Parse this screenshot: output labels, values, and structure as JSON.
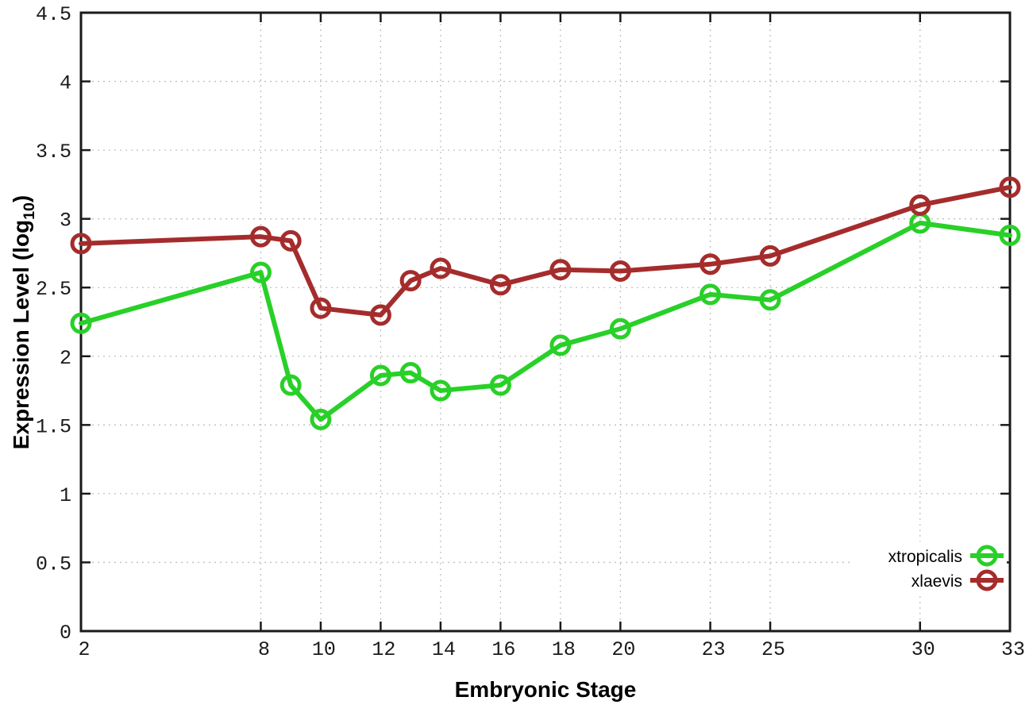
{
  "chart_data": {
    "type": "line",
    "title": "",
    "xlabel": "Embryonic Stage",
    "ylabel": {
      "prefix": "Expression Level (log",
      "sub": "10",
      "suffix": ")"
    },
    "xlim": [
      2,
      33
    ],
    "ylim": [
      0,
      4.5
    ],
    "x": [
      2,
      8,
      9,
      10,
      12,
      13,
      14,
      16,
      18,
      20,
      23,
      25,
      30,
      33
    ],
    "xticks": [
      2,
      8,
      10,
      12,
      14,
      16,
      18,
      20,
      23,
      25,
      30,
      33
    ],
    "yticks": [
      0,
      0.5,
      1,
      1.5,
      2,
      2.5,
      3,
      3.5,
      4,
      4.5
    ],
    "grid": true,
    "series": [
      {
        "name": "xtropicalis",
        "color": "#28d028",
        "marker": "open-circle",
        "values": [
          2.24,
          2.61,
          1.79,
          1.54,
          1.86,
          1.88,
          1.75,
          1.79,
          2.08,
          2.2,
          2.45,
          2.41,
          2.97,
          2.88
        ]
      },
      {
        "name": "xlaevis",
        "color": "#a52c2c",
        "marker": "open-circle",
        "values": [
          2.82,
          2.87,
          2.84,
          2.35,
          2.3,
          2.55,
          2.64,
          2.52,
          2.63,
          2.62,
          2.67,
          2.73,
          3.1,
          3.23
        ]
      }
    ],
    "legend": {
      "position": "bottom-right",
      "entries": [
        "xtropicalis",
        "xlaevis"
      ]
    },
    "style": {
      "border_color": "#1a1a1a",
      "grid_color": "#c0c0c0",
      "background": "#ffffff",
      "line_width": 6,
      "marker_radius": 11,
      "marker_stroke": 5
    }
  }
}
